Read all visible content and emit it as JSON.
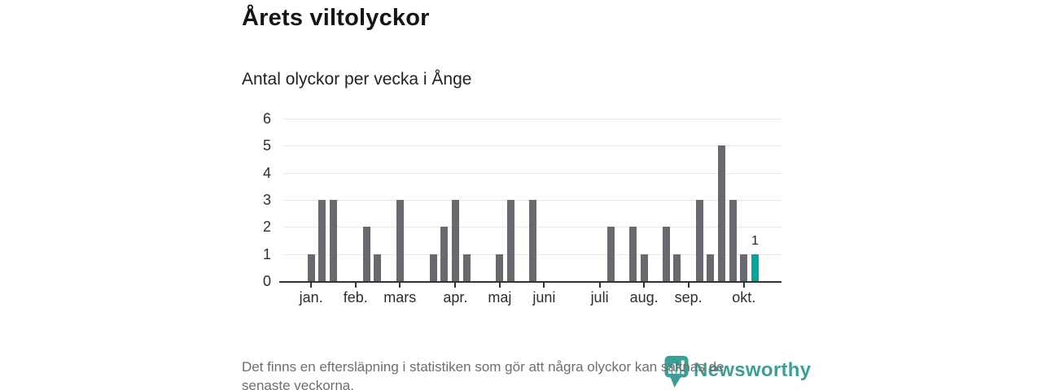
{
  "title": "Årets viltolyckor",
  "subtitle": "Antal olyckor per vecka i Ånge",
  "footnote": {
    "text": "Det finns en eftersläpning i statistiken som gör att några olyckor kan saknas de senaste veckorna.",
    "lines": [
      "Det finns en eftersläpning i statistiken som gör att några olyckor kan saknas de",
      "senaste veckorna."
    ]
  },
  "logo": {
    "wordmark": "Newsworthy",
    "icon": "bar-chart-marker-icon"
  },
  "colors": {
    "bar": "#696a70",
    "highlight": "#00a69a",
    "grid": "#e9e9e9",
    "axis": "#333333",
    "text": "#2e2e2e",
    "muted": "#6e6e6e",
    "logo_teal": "#3d9e96"
  },
  "chart_data": {
    "type": "bar",
    "title": "Årets viltolyckor",
    "subtitle": "Antal olyckor per vecka i Ånge",
    "x_unit": "vecka (week of year)",
    "ylabel": "",
    "xlabel": "",
    "ylim": [
      0,
      6
    ],
    "yticks": [
      0,
      1,
      2,
      3,
      4,
      5,
      6
    ],
    "grid": true,
    "values": [
      1,
      3,
      3,
      0,
      0,
      2,
      1,
      0,
      3,
      0,
      0,
      1,
      2,
      3,
      1,
      0,
      0,
      1,
      3,
      0,
      3,
      0,
      0,
      0,
      0,
      0,
      0,
      2,
      0,
      2,
      1,
      0,
      2,
      1,
      0,
      3,
      1,
      5,
      3,
      1,
      1
    ],
    "highlight_last_index": 40,
    "annotations": [
      {
        "week": 40,
        "text": "1"
      }
    ],
    "x_ticks": [
      {
        "label": "jan.",
        "week": 0
      },
      {
        "label": "feb.",
        "week": 4
      },
      {
        "label": "mars",
        "week": 8
      },
      {
        "label": "apr.",
        "week": 13
      },
      {
        "label": "maj",
        "week": 17
      },
      {
        "label": "juni",
        "week": 21
      },
      {
        "label": "juli",
        "week": 26
      },
      {
        "label": "aug.",
        "week": 30
      },
      {
        "label": "sep.",
        "week": 34
      },
      {
        "label": "okt.",
        "week": 39
      }
    ]
  }
}
